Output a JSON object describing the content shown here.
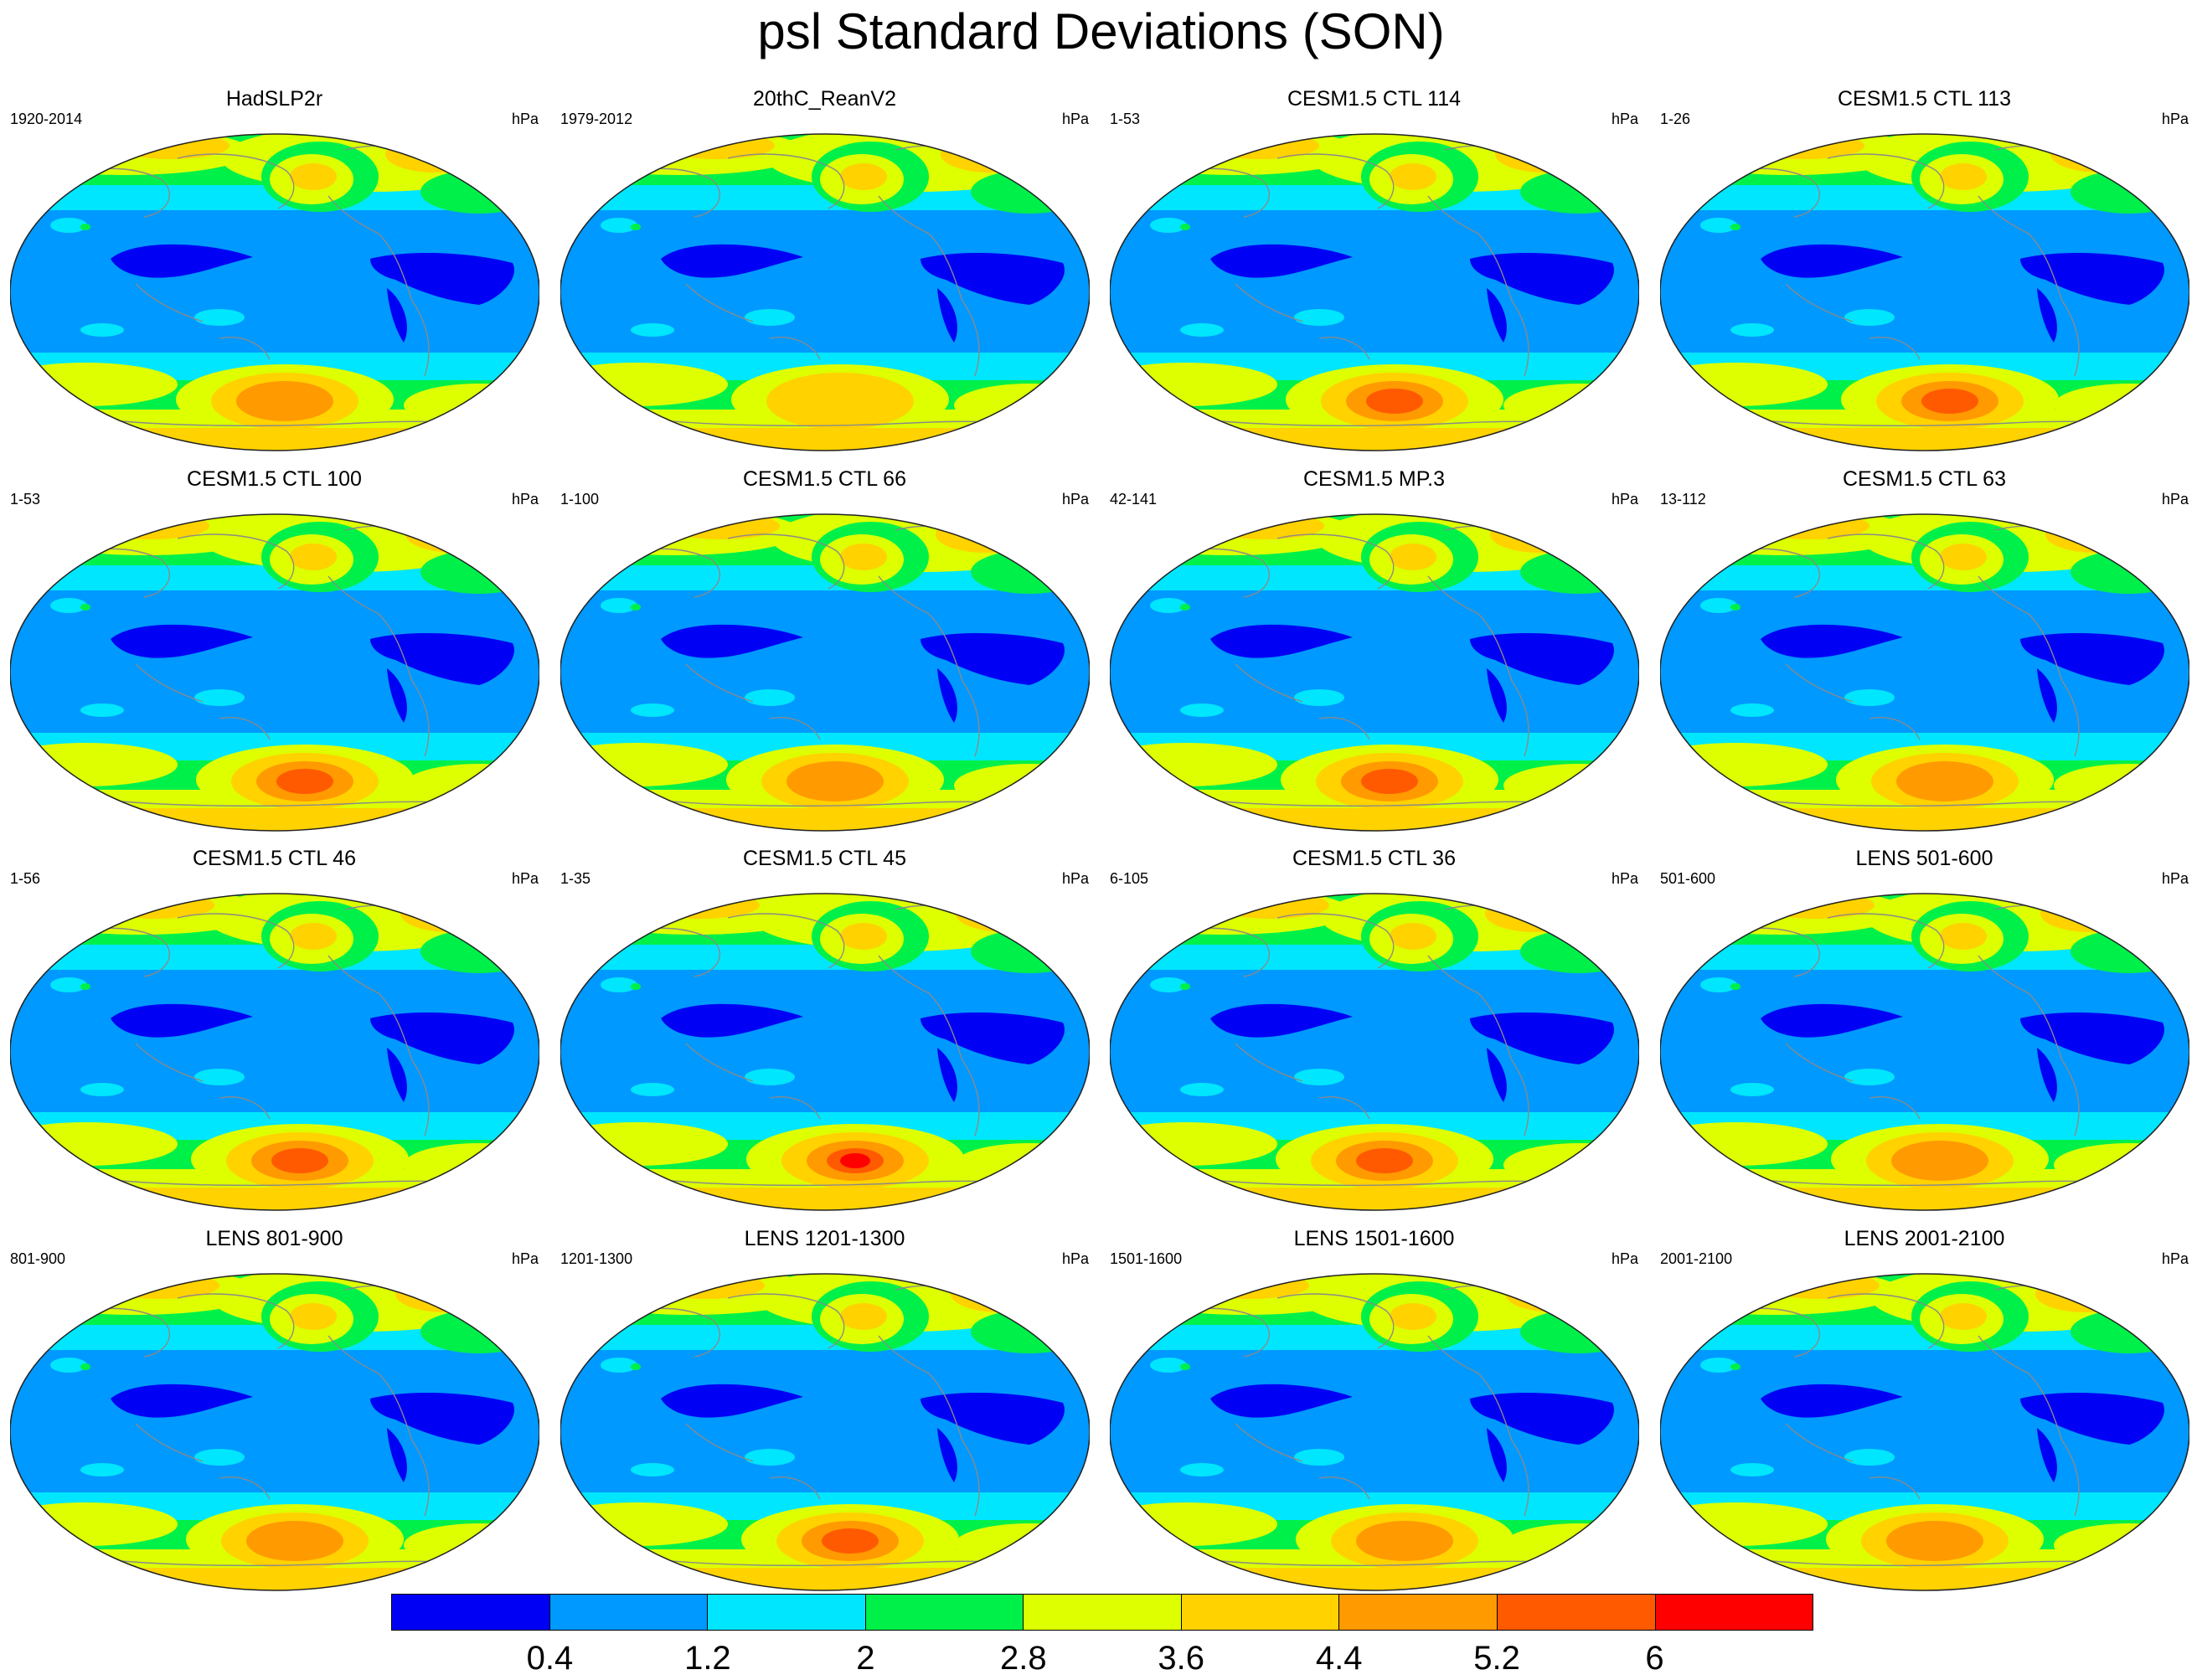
{
  "title": "psl Standard Deviations (SON)",
  "unit": "hPa",
  "palette": {
    "land_outline": "#8a8a8a",
    "map_border": "#222222",
    "bins": [
      "#0000f5",
      "#0099ff",
      "#00e6ff",
      "#00f04a",
      "#ddff00",
      "#ffd200",
      "#ff9a00",
      "#ff5a00",
      "#ff0000"
    ]
  },
  "colorbar": {
    "colors": [
      "#0000f5",
      "#0099ff",
      "#00e6ff",
      "#00f04a",
      "#ddff00",
      "#ffd200",
      "#ff9a00",
      "#ff5a00",
      "#ff0000"
    ],
    "labels": [
      "0.4",
      "1.2",
      "2",
      "2.8",
      "3.6",
      "4.4",
      "5.2",
      "6"
    ]
  },
  "panels": [
    {
      "title": "HadSLP2r",
      "period": "1920-2014",
      "unit": "hPa",
      "south_max_level": 6
    },
    {
      "title": "20thC_ReanV2",
      "period": "1979-2012",
      "unit": "hPa",
      "south_max_level": 5
    },
    {
      "title": "CESM1.5 CTL 114",
      "period": "1-53",
      "unit": "hPa",
      "south_max_level": 7
    },
    {
      "title": "CESM1.5 CTL 113",
      "period": "1-26",
      "unit": "hPa",
      "south_max_level": 7
    },
    {
      "title": "CESM1.5 CTL 100",
      "period": "1-53",
      "unit": "hPa",
      "south_max_level": 7
    },
    {
      "title": "CESM1.5 CTL 66",
      "period": "1-100",
      "unit": "hPa",
      "south_max_level": 6
    },
    {
      "title": "CESM1.5 MP.3",
      "period": "42-141",
      "unit": "hPa",
      "south_max_level": 7
    },
    {
      "title": "CESM1.5 CTL 63",
      "period": "13-112",
      "unit": "hPa",
      "south_max_level": 6
    },
    {
      "title": "CESM1.5 CTL 46",
      "period": "1-56",
      "unit": "hPa",
      "south_max_level": 7
    },
    {
      "title": "CESM1.5 CTL 45",
      "period": "1-35",
      "unit": "hPa",
      "south_max_level": 8
    },
    {
      "title": "CESM1.5 CTL 36",
      "period": "6-105",
      "unit": "hPa",
      "south_max_level": 7
    },
    {
      "title": "LENS 501-600",
      "period": "501-600",
      "unit": "hPa",
      "south_max_level": 6
    },
    {
      "title": "LENS 801-900",
      "period": "801-900",
      "unit": "hPa",
      "south_max_level": 6
    },
    {
      "title": "LENS 1201-1300",
      "period": "1201-1300",
      "unit": "hPa",
      "south_max_level": 7
    },
    {
      "title": "LENS 1501-1600",
      "period": "1501-1600",
      "unit": "hPa",
      "south_max_level": 6
    },
    {
      "title": "LENS 2001-2100",
      "period": "2001-2100",
      "unit": "hPa",
      "south_max_level": 6
    }
  ]
}
